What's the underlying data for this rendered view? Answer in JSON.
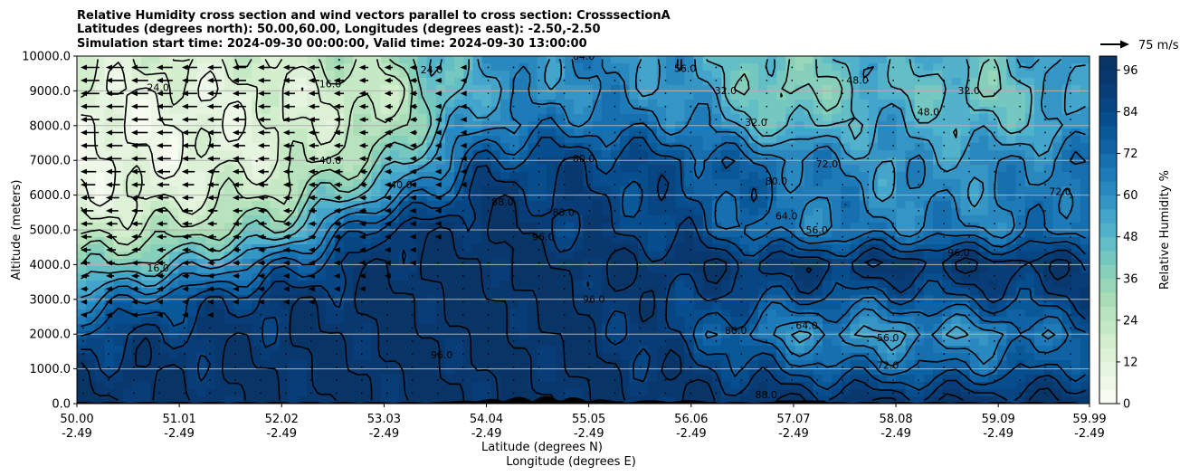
{
  "chart_data": {
    "type": "heatmap",
    "title_lines": [
      "Relative Humidity cross section and wind vectors parallel to cross section: CrosssectionA",
      "Latitudes (degrees north): 50.00,60.00, Longitudes (degrees east): -2.50,-2.50",
      "Simulation start time: 2024-09-30 00:00:00, Valid time: 2024-09-30 13:00:00"
    ],
    "ylabel": "Altitude (meters)",
    "xlabel_lat": "Latitude (degrees N)",
    "xlabel_lon": "Longitude (degrees E)",
    "ylim": [
      0,
      10000
    ],
    "xlim": [
      50.0,
      59.99
    ],
    "y_ticks": [
      "0.0",
      "1000.0",
      "2000.0",
      "3000.0",
      "4000.0",
      "5000.0",
      "6000.0",
      "7000.0",
      "8000.0",
      "9000.0",
      "10000.0"
    ],
    "y_tick_values": [
      0,
      1000,
      2000,
      3000,
      4000,
      5000,
      6000,
      7000,
      8000,
      9000,
      10000
    ],
    "x_ticks": [
      {
        "value": 50.0,
        "lat": "50.00",
        "lon": "-2.49"
      },
      {
        "value": 51.01,
        "lat": "51.01",
        "lon": "-2.49"
      },
      {
        "value": 52.02,
        "lat": "52.02",
        "lon": "-2.49"
      },
      {
        "value": 53.03,
        "lat": "53.03",
        "lon": "-2.49"
      },
      {
        "value": 54.04,
        "lat": "54.04",
        "lon": "-2.49"
      },
      {
        "value": 55.05,
        "lat": "55.05",
        "lon": "-2.49"
      },
      {
        "value": 56.06,
        "lat": "56.06",
        "lon": "-2.49"
      },
      {
        "value": 57.07,
        "lat": "57.07",
        "lon": "-2.49"
      },
      {
        "value": 58.08,
        "lat": "58.08",
        "lon": "-2.49"
      },
      {
        "value": 59.09,
        "lat": "59.09",
        "lon": "-2.49"
      },
      {
        "value": 59.99,
        "lat": "59.99",
        "lon": "-2.49"
      }
    ],
    "grid": "horizontal lines at y ticks",
    "colorbar": {
      "label": "Relative Humidity %",
      "ticks": [
        "0",
        "12",
        "24",
        "36",
        "48",
        "60",
        "72",
        "84",
        "96"
      ],
      "tick_values": [
        0,
        12,
        24,
        36,
        48,
        60,
        72,
        84,
        96
      ],
      "levels": [
        0,
        4,
        8,
        12,
        16,
        20,
        24,
        28,
        32,
        36,
        40,
        44,
        48,
        52,
        56,
        60,
        64,
        68,
        72,
        76,
        80,
        84,
        88,
        92,
        96,
        100
      ],
      "colors": [
        "#f7fcf0",
        "#eef8e8",
        "#e5f5e0",
        "#dcf1d6",
        "#d3eecd",
        "#c6e9c5",
        "#b8e3be",
        "#a8ddb5",
        "#97d7b8",
        "#86d0bb",
        "#75c8c0",
        "#63bec6",
        "#52b2cc",
        "#43a4cc",
        "#3596c6",
        "#2989bf",
        "#1e7bb8",
        "#166fae",
        "#0f63a4",
        "#095898",
        "#064e8d",
        "#084583",
        "#083d78",
        "#08386e",
        "#083466"
      ]
    },
    "wind_reference": {
      "label": "75 m/s",
      "value": 75
    },
    "rh_anchor_values": {
      "altitude": [
        0,
        1000,
        2000,
        3000,
        4000,
        5000,
        6000,
        7000,
        8000,
        9000,
        10000
      ],
      "latitude": [
        50.0,
        51.0,
        52.0,
        53.0,
        54.0,
        55.0,
        56.0,
        57.0,
        58.0,
        59.0,
        60.0
      ],
      "rh": [
        [
          96,
          96,
          96,
          96,
          96,
          96,
          96,
          96,
          96,
          96,
          96
        ],
        [
          92,
          94,
          96,
          97,
          97,
          96,
          92,
          78,
          72,
          74,
          84
        ],
        [
          84,
          90,
          94,
          97,
          97,
          96,
          84,
          60,
          56,
          60,
          76
        ],
        [
          60,
          80,
          92,
          97,
          98,
          96,
          88,
          80,
          76,
          82,
          88
        ],
        [
          36,
          48,
          72,
          96,
          97,
          96,
          94,
          92,
          94,
          94,
          92
        ],
        [
          20,
          26,
          40,
          88,
          97,
          88,
          84,
          64,
          66,
          64,
          72
        ],
        [
          10,
          14,
          26,
          56,
          92,
          88,
          80,
          70,
          60,
          62,
          72
        ],
        [
          6,
          10,
          16,
          36,
          80,
          86,
          80,
          68,
          58,
          60,
          70
        ],
        [
          6,
          8,
          14,
          24,
          64,
          70,
          66,
          44,
          56,
          48,
          56
        ],
        [
          10,
          10,
          14,
          20,
          56,
          62,
          58,
          36,
          50,
          40,
          60
        ],
        [
          16,
          18,
          20,
          30,
          58,
          64,
          56,
          40,
          54,
          46,
          64
        ]
      ]
    },
    "contour_labels": [
      {
        "text": "96.0",
        "x": 54.6,
        "y": 4700
      },
      {
        "text": "96.0",
        "x": 58.7,
        "y": 4250
      },
      {
        "text": "88.0",
        "x": 54.2,
        "y": 5700
      },
      {
        "text": "88.0",
        "x": 54.8,
        "y": 5400
      },
      {
        "text": "80.0",
        "x": 55.0,
        "y": 6950
      },
      {
        "text": "80.0",
        "x": 56.9,
        "y": 6300
      },
      {
        "text": "72.0",
        "x": 57.4,
        "y": 6800
      },
      {
        "text": "72.0",
        "x": 59.7,
        "y": 6000
      },
      {
        "text": "64.0",
        "x": 55.0,
        "y": 9900
      },
      {
        "text": "64.0",
        "x": 57.0,
        "y": 5300
      },
      {
        "text": "56.0",
        "x": 56.0,
        "y": 9550
      },
      {
        "text": "56.0",
        "x": 57.3,
        "y": 4900
      },
      {
        "text": "48.0",
        "x": 57.7,
        "y": 9200
      },
      {
        "text": "48.0",
        "x": 58.4,
        "y": 8300
      },
      {
        "text": "40.0",
        "x": 52.5,
        "y": 6900
      },
      {
        "text": "40.0",
        "x": 53.2,
        "y": 6200
      },
      {
        "text": "32.0",
        "x": 56.4,
        "y": 8900
      },
      {
        "text": "32.0",
        "x": 56.7,
        "y": 8000
      },
      {
        "text": "32.0",
        "x": 58.8,
        "y": 8900
      },
      {
        "text": "24.0",
        "x": 50.8,
        "y": 9000
      },
      {
        "text": "24.0",
        "x": 53.5,
        "y": 9500
      },
      {
        "text": "16.0",
        "x": 52.5,
        "y": 9100
      },
      {
        "text": "16.0",
        "x": 50.8,
        "y": 3800
      },
      {
        "text": "96.0",
        "x": 55.1,
        "y": 2900
      },
      {
        "text": "96.0",
        "x": 53.6,
        "y": 1300
      },
      {
        "text": "80.0",
        "x": 56.5,
        "y": 2000
      },
      {
        "text": "72.0",
        "x": 58.0,
        "y": 1000
      },
      {
        "text": "64.0",
        "x": 57.2,
        "y": 2150
      },
      {
        "text": "56.0",
        "x": 58.0,
        "y": 1800
      },
      {
        "text": "88.0",
        "x": 56.8,
        "y": 150
      }
    ]
  }
}
